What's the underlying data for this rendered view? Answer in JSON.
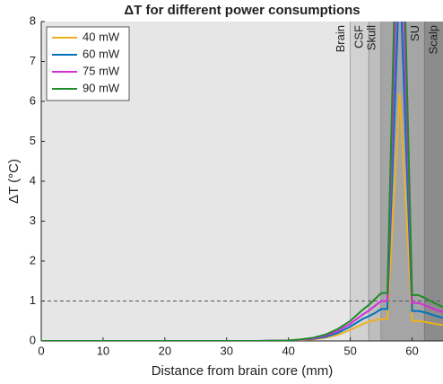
{
  "chart_data": {
    "type": "line",
    "title": "ΔT for different power consumptions",
    "xlabel": "Distance from brain core (mm)",
    "ylabel": "ΔT (°C)",
    "xlim": [
      0,
      65
    ],
    "ylim": [
      0,
      8
    ],
    "xticks": [
      0,
      10,
      20,
      30,
      40,
      50,
      60
    ],
    "yticks": [
      0,
      1,
      2,
      3,
      4,
      5,
      6,
      7,
      8
    ],
    "hline": 1,
    "legend": "upper left",
    "regions": [
      {
        "label": "Brain",
        "start": 0,
        "end": 50,
        "color": "#e6e6e6"
      },
      {
        "label": "CSF",
        "start": 50,
        "end": 53,
        "color": "#d2d2d2"
      },
      {
        "label": "Skull",
        "start": 53,
        "end": 55,
        "color": "#bebebe"
      },
      {
        "label": "SU",
        "start": 55,
        "end": 62,
        "color": "#a5a5a5"
      },
      {
        "label": "Scalp",
        "start": 62,
        "end": 65,
        "color": "#8c8c8c"
      }
    ],
    "x": [
      0,
      10,
      20,
      30,
      35,
      40,
      42,
      44,
      46,
      48,
      50,
      52,
      53,
      54,
      55,
      56,
      57,
      58,
      59,
      60,
      61,
      62,
      63,
      64,
      65
    ],
    "series": [
      {
        "name": "40 mW",
        "color": "#edb120",
        "values": [
          0,
          0,
          0,
          0,
          0,
          0.01,
          0.02,
          0.04,
          0.08,
          0.15,
          0.28,
          0.42,
          0.48,
          0.52,
          0.55,
          0.55,
          3.4,
          6.2,
          3.4,
          0.5,
          0.5,
          0.48,
          0.45,
          0.42,
          0.4
        ]
      },
      {
        "name": "60 mW",
        "color": "#0072bd",
        "values": [
          0,
          0,
          0,
          0,
          0,
          0.01,
          0.03,
          0.05,
          0.1,
          0.2,
          0.36,
          0.55,
          0.62,
          0.7,
          0.8,
          0.8,
          5,
          9.3,
          5,
          0.75,
          0.75,
          0.72,
          0.67,
          0.62,
          0.58
        ]
      },
      {
        "name": "75 mW",
        "color": "#d12fd8",
        "values": [
          0,
          0,
          0,
          0,
          0,
          0.01,
          0.03,
          0.06,
          0.13,
          0.25,
          0.43,
          0.66,
          0.76,
          0.88,
          1.0,
          1.0,
          6.2,
          11.6,
          6.2,
          0.95,
          0.95,
          0.9,
          0.83,
          0.77,
          0.72
        ]
      },
      {
        "name": "90 mW",
        "color": "#1e8c28",
        "values": [
          0,
          0,
          0,
          0,
          0,
          0.01,
          0.04,
          0.08,
          0.16,
          0.3,
          0.5,
          0.78,
          0.9,
          1.05,
          1.2,
          1.2,
          7.5,
          14,
          7.5,
          1.15,
          1.15,
          1.08,
          1.0,
          0.92,
          0.85
        ]
      }
    ]
  }
}
